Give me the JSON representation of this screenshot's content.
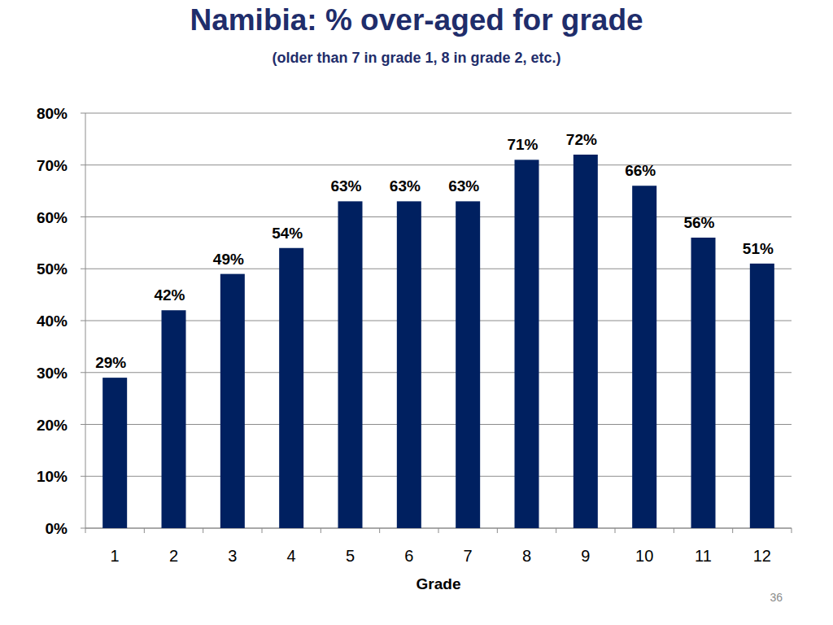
{
  "chart_data": {
    "type": "bar",
    "title": "Namibia: % over-aged for grade",
    "subtitle": "(older than 7 in grade 1, 8 in grade 2, etc.)",
    "x_label": "Grade",
    "categories": [
      "1",
      "2",
      "3",
      "4",
      "5",
      "6",
      "7",
      "8",
      "9",
      "10",
      "11",
      "12"
    ],
    "values": [
      29,
      42,
      49,
      54,
      63,
      63,
      63,
      71,
      72,
      66,
      56,
      51
    ],
    "value_labels": [
      "29%",
      "42%",
      "49%",
      "54%",
      "63%",
      "63%",
      "63%",
      "71%",
      "72%",
      "66%",
      "56%",
      "51%"
    ],
    "color": "#002060",
    "ylim": [
      0,
      80
    ],
    "yticks": [
      {
        "value": 0,
        "label": "0%"
      },
      {
        "value": 10,
        "label": "10%"
      },
      {
        "value": 20,
        "label": "20%"
      },
      {
        "value": 30,
        "label": "30%"
      },
      {
        "value": 40,
        "label": "40%"
      },
      {
        "value": 50,
        "label": "50%"
      },
      {
        "value": 60,
        "label": "60%"
      },
      {
        "value": 70,
        "label": "70%"
      },
      {
        "value": 80,
        "label": "80%"
      }
    ],
    "grid": true,
    "data_labels": true
  },
  "page_number": "36"
}
